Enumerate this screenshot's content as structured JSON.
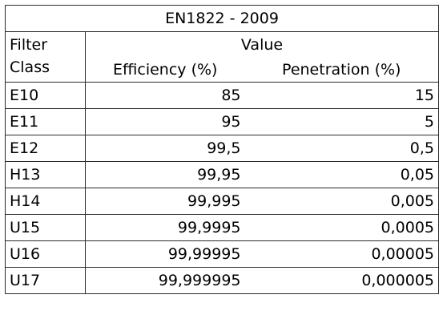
{
  "table": {
    "title": "EN1822 - 2009",
    "header": {
      "class_label_line1": "Filter",
      "class_label_line2": "Class",
      "value_label": "Value",
      "efficiency_label": "Efficiency (%)",
      "penetration_label": "Penetration (%)"
    },
    "rows": [
      {
        "class": "E10",
        "efficiency": "85",
        "penetration": "15"
      },
      {
        "class": "E11",
        "efficiency": "95",
        "penetration": "5"
      },
      {
        "class": "E12",
        "efficiency": "99,5",
        "penetration": "0,5"
      },
      {
        "class": "H13",
        "efficiency": "99,95",
        "penetration": "0,05"
      },
      {
        "class": "H14",
        "efficiency": "99,995",
        "penetration": "0,005"
      },
      {
        "class": "U15",
        "efficiency": "99,9995",
        "penetration": "0,0005"
      },
      {
        "class": "U16",
        "efficiency": "99,99995",
        "penetration": "0,00005"
      },
      {
        "class": "U17",
        "efficiency": "99,999995",
        "penetration": "0,000005"
      }
    ]
  }
}
